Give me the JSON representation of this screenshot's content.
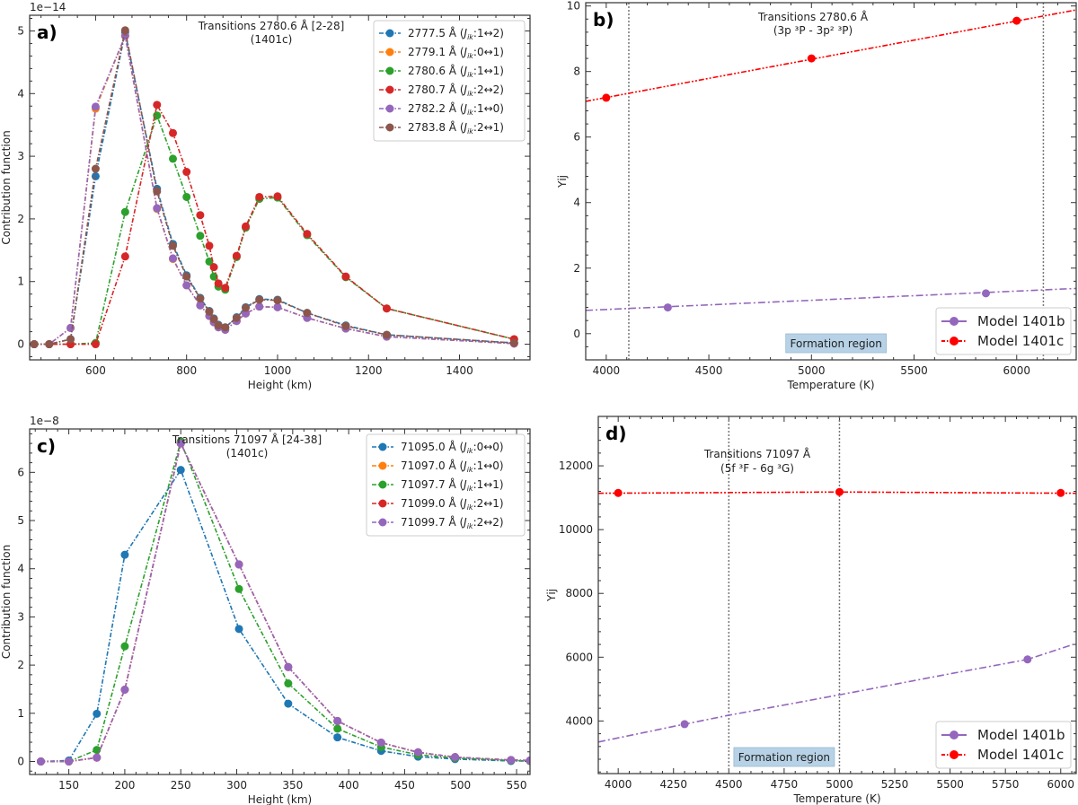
{
  "chart_data": [
    {
      "id": "a",
      "type": "line",
      "panel_label": "a)",
      "title": "Transitions 2780.6 Å [2-28]",
      "subtitle": "(1401c)",
      "xlabel": "Height (km)",
      "ylabel": "Contribution function",
      "offset_text": "1e−14",
      "xlim": [
        455,
        1555
      ],
      "ylim": [
        -0.25,
        5.25
      ],
      "xticks": [
        600,
        800,
        1000,
        1200,
        1400
      ],
      "yticks": [
        0,
        1,
        2,
        3,
        4,
        5
      ],
      "legend_position": "top-right",
      "series": [
        {
          "name": "2777.5 Å (J_ik:1↔2)",
          "label_main": "2777.5 Å (",
          "label_j": "J",
          "label_sub": "ik",
          "label_rest": ":1↔2)",
          "color": "#1f77b4",
          "x": [
            465,
            498,
            545,
            600,
            665,
            735,
            770,
            800,
            830,
            850,
            860,
            870,
            885,
            910,
            930,
            960,
            1000,
            1065,
            1150,
            1240,
            1520
          ],
          "y": [
            0,
            0,
            0.08,
            2.68,
            4.98,
            2.48,
            1.6,
            1.1,
            0.74,
            0.53,
            0.41,
            0.31,
            0.27,
            0.43,
            0.59,
            0.72,
            0.71,
            0.5,
            0.3,
            0.15,
            0.02
          ]
        },
        {
          "name": "2779.1 Å (J_ik:0↔1)",
          "label_main": "2779.1 Å (",
          "label_j": "J",
          "label_sub": "ik",
          "label_rest": ":0↔1)",
          "color": "#ff7f0e",
          "x": [
            465,
            498,
            545,
            600,
            665,
            735,
            770,
            800,
            830,
            850,
            860,
            870,
            885,
            910,
            930,
            960,
            1000,
            1065,
            1150,
            1240,
            1520
          ],
          "y": [
            0,
            0,
            0.26,
            3.76,
            4.92,
            2.16,
            1.36,
            0.94,
            0.62,
            0.45,
            0.35,
            0.27,
            0.23,
            0.37,
            0.49,
            0.6,
            0.59,
            0.42,
            0.25,
            0.12,
            0.01
          ]
        },
        {
          "name": "2780.6 Å (J_ik:1↔1)",
          "label_main": "2780.6 Å (",
          "label_j": "J",
          "label_sub": "ik",
          "label_rest": ":1↔1)",
          "color": "#2ca02c",
          "x": [
            465,
            498,
            545,
            600,
            665,
            735,
            770,
            800,
            830,
            850,
            860,
            870,
            885,
            910,
            930,
            960,
            1000,
            1065,
            1150,
            1240,
            1520
          ],
          "y": [
            0,
            0,
            0,
            0.02,
            2.11,
            3.65,
            2.96,
            2.35,
            1.73,
            1.32,
            1.08,
            0.92,
            0.87,
            1.39,
            1.86,
            2.32,
            2.34,
            1.74,
            1.07,
            0.57,
            0.08
          ]
        },
        {
          "name": "2780.7 Å (J_ik:2↔2)",
          "label_main": "2780.7 Å (",
          "label_j": "J",
          "label_sub": "ik",
          "label_rest": ":2↔2)",
          "color": "#d62728",
          "x": [
            465,
            498,
            545,
            600,
            665,
            735,
            770,
            800,
            830,
            850,
            860,
            870,
            885,
            910,
            930,
            960,
            1000,
            1065,
            1150,
            1240,
            1520
          ],
          "y": [
            0,
            0,
            0,
            0,
            1.4,
            3.82,
            3.37,
            2.75,
            2.06,
            1.57,
            1.23,
            0.97,
            0.9,
            1.41,
            1.88,
            2.35,
            2.36,
            1.76,
            1.08,
            0.57,
            0.08
          ]
        },
        {
          "name": "2782.2 Å (J_ik:1↔0)",
          "label_main": "2782.2 Å (",
          "label_j": "J",
          "label_sub": "ik",
          "label_rest": ":1↔0)",
          "color": "#9467bd",
          "x": [
            465,
            498,
            545,
            600,
            665,
            735,
            770,
            800,
            830,
            850,
            860,
            870,
            885,
            910,
            930,
            960,
            1000,
            1065,
            1150,
            1240,
            1520
          ],
          "y": [
            0,
            0,
            0.26,
            3.79,
            4.92,
            2.17,
            1.37,
            0.94,
            0.62,
            0.45,
            0.35,
            0.27,
            0.23,
            0.37,
            0.49,
            0.6,
            0.59,
            0.42,
            0.25,
            0.12,
            0.01
          ]
        },
        {
          "name": "2783.8 Å (J_ik:2↔1)",
          "label_main": "2783.8 Å (",
          "label_j": "J",
          "label_sub": "ik",
          "label_rest": ":2↔1)",
          "color": "#8c564b",
          "x": [
            465,
            498,
            545,
            600,
            665,
            735,
            770,
            800,
            830,
            850,
            860,
            870,
            885,
            910,
            930,
            960,
            1000,
            1065,
            1150,
            1240,
            1520
          ],
          "y": [
            0,
            0,
            0.08,
            2.8,
            5.01,
            2.44,
            1.57,
            1.08,
            0.73,
            0.52,
            0.4,
            0.3,
            0.27,
            0.42,
            0.58,
            0.71,
            0.7,
            0.5,
            0.29,
            0.15,
            0.02
          ]
        }
      ]
    },
    {
      "id": "b",
      "type": "line",
      "panel_label": "b)",
      "title": "Transitions 2780.6 Å",
      "subtitle": "(3p ³P - 3p² ³P)",
      "xlabel": "Temperature (K)",
      "ylabel": "Υij",
      "xlim": [
        3900,
        6290
      ],
      "ylim": [
        -0.8,
        10.1
      ],
      "xticks": [
        4000,
        4500,
        5000,
        5500,
        6000
      ],
      "yticks": [
        0,
        2,
        4,
        6,
        8,
        10
      ],
      "vlines": [
        4110,
        6130
      ],
      "region_label": "Formation region",
      "legend_position": "bottom-right",
      "series": [
        {
          "name": "Model 1401b",
          "color": "#9467bd",
          "style": "dashdot",
          "x": [
            4300,
            5850
          ],
          "y": [
            0.8,
            1.23
          ],
          "line_x": [
            3900,
            6290
          ],
          "line_y": [
            0.71,
            1.38
          ]
        },
        {
          "name": "Model 1401c",
          "color": "#ff0000",
          "style": "dashdotdot",
          "x": [
            4000,
            5000,
            6000
          ],
          "y": [
            7.2,
            8.4,
            9.55
          ],
          "line_x": [
            3900,
            6290
          ],
          "line_y": [
            7.09,
            9.88
          ]
        }
      ]
    },
    {
      "id": "c",
      "type": "line",
      "panel_label": "c)",
      "title": "Transitions 71097 Å [24-38]",
      "subtitle": "(1401c)",
      "xlabel": "Height (km)",
      "ylabel": "Contribution function",
      "offset_text": "1e−8",
      "xlim": [
        115,
        562
      ],
      "ylim": [
        -0.27,
        6.9
      ],
      "xticks": [
        150,
        200,
        250,
        300,
        350,
        400,
        450,
        500,
        550
      ],
      "yticks": [
        0,
        1,
        2,
        3,
        4,
        5,
        6
      ],
      "legend_position": "top-right",
      "series": [
        {
          "name": "71095.0 Å (J_ik:0↔0)",
          "label_main": "71095.0 Å (",
          "label_j": "J",
          "label_sub": "ik",
          "label_rest": ":0↔0)",
          "color": "#1f77b4",
          "x": [
            125,
            150,
            175,
            200,
            250,
            302,
            346,
            390,
            429,
            462,
            495,
            545,
            562
          ],
          "y": [
            0,
            0.02,
            0.99,
            4.29,
            6.05,
            2.75,
            1.2,
            0.5,
            0.22,
            0.1,
            0.05,
            0.01,
            0.01
          ]
        },
        {
          "name": "71097.0 Å (J_ik:1↔0)",
          "label_main": "71097.0 Å (",
          "label_j": "J",
          "label_sub": "ik",
          "label_rest": ":1↔0)",
          "color": "#ff7f0e",
          "x": [
            125,
            150,
            175,
            200,
            250,
            302,
            346,
            390,
            429,
            462,
            495,
            545,
            562
          ],
          "y": [
            0,
            0,
            0.08,
            1.49,
            6.6,
            4.09,
            1.96,
            0.84,
            0.39,
            0.19,
            0.09,
            0.03,
            0.02
          ]
        },
        {
          "name": "71097.7 Å (J_ik:1↔1)",
          "label_main": "71097.7 Å (",
          "label_j": "J",
          "label_sub": "ik",
          "label_rest": ":1↔1)",
          "color": "#2ca02c",
          "x": [
            125,
            150,
            175,
            200,
            250,
            302,
            346,
            390,
            429,
            462,
            495,
            545,
            562
          ],
          "y": [
            0,
            0,
            0.24,
            2.39,
            6.64,
            3.58,
            1.62,
            0.68,
            0.3,
            0.14,
            0.07,
            0.02,
            0.01
          ]
        },
        {
          "name": "71099.0 Å (J_ik:2↔1)",
          "label_main": "71099.0 Å (",
          "label_j": "J",
          "label_sub": "ik",
          "label_rest": ":2↔1)",
          "color": "#d62728",
          "x": [
            125,
            150,
            175,
            200,
            250,
            302,
            346,
            390,
            429,
            462,
            495,
            545,
            562
          ],
          "y": [
            0,
            0,
            0.08,
            1.49,
            6.6,
            4.09,
            1.96,
            0.84,
            0.39,
            0.19,
            0.09,
            0.03,
            0.02
          ]
        },
        {
          "name": "71099.7 Å (J_ik:2↔2)",
          "label_main": "71099.7 Å (",
          "label_j": "J",
          "label_sub": "ik",
          "label_rest": ":2↔2)",
          "color": "#9467bd",
          "x": [
            125,
            150,
            175,
            200,
            250,
            302,
            346,
            390,
            429,
            462,
            495,
            545,
            562
          ],
          "y": [
            0,
            0,
            0.08,
            1.49,
            6.6,
            4.09,
            1.96,
            0.84,
            0.39,
            0.19,
            0.09,
            0.03,
            0.02
          ]
        }
      ]
    },
    {
      "id": "d",
      "type": "line",
      "panel_label": "d)",
      "title": "Transitions 71097 Å",
      "subtitle": "(5f ³F - 6g ³G)",
      "xlabel": "Temperature (K)",
      "ylabel": "Υij",
      "xlim": [
        3910,
        6070
      ],
      "ylim": [
        2350,
        13550
      ],
      "xticks": [
        4000,
        4250,
        4500,
        4750,
        5000,
        5250,
        5500,
        5750,
        6000
      ],
      "yticks": [
        4000,
        6000,
        8000,
        10000,
        12000
      ],
      "vlines": [
        4500,
        5000
      ],
      "region_label": "Formation region",
      "legend_position": "bottom-right",
      "series": [
        {
          "name": "Model 1401b",
          "color": "#9467bd",
          "style": "dashdot",
          "x": [
            4300,
            5850
          ],
          "y": [
            3900,
            5930
          ],
          "line_x": [
            3910,
            4300,
            4500,
            5000,
            5500,
            5850,
            6070
          ],
          "line_y": [
            3340,
            3900,
            4180,
            4820,
            5480,
            5930,
            6430
          ]
        },
        {
          "name": "Model 1401c",
          "color": "#ff0000",
          "style": "dashdotdot",
          "x": [
            4000,
            5000,
            6000
          ],
          "y": [
            11150,
            11180,
            11150
          ],
          "line_x": [
            3910,
            5000,
            6070
          ],
          "line_y": [
            11140,
            11180,
            11140
          ]
        }
      ]
    }
  ]
}
